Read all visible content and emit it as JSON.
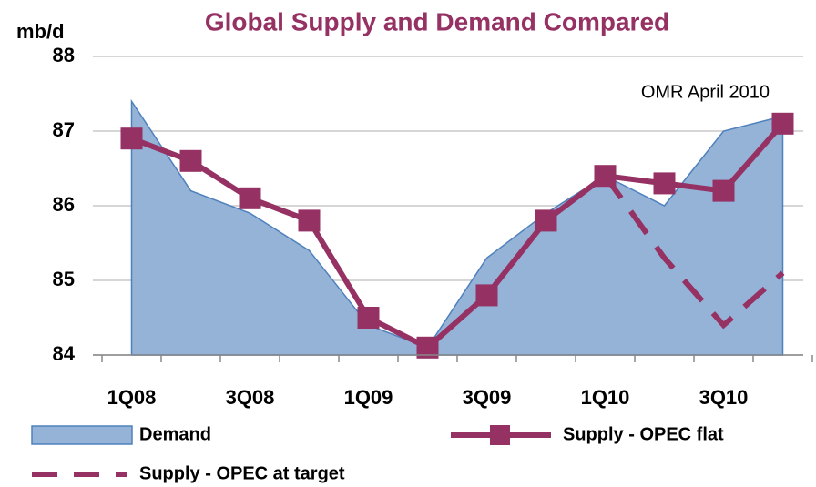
{
  "chart_data": {
    "type": "line",
    "title": "Global Supply and Demand Compared",
    "y_label": "mb/d",
    "annotation": "OMR April 2010",
    "categories": [
      "1Q08",
      null,
      "3Q08",
      null,
      "1Q09",
      null,
      "3Q09",
      null,
      "1Q10",
      null,
      "3Q10",
      null
    ],
    "series": [
      {
        "name": "Demand",
        "type": "area",
        "color": "#95b3d7",
        "values": [
          87.4,
          86.2,
          85.9,
          85.4,
          84.4,
          84.1,
          85.3,
          85.9,
          86.4,
          86.0,
          87.0,
          87.2
        ]
      },
      {
        "name": "Supply - OPEC flat",
        "type": "line-marker",
        "color": "#953163",
        "values": [
          86.9,
          86.6,
          86.1,
          85.8,
          84.5,
          84.1,
          84.8,
          85.8,
          86.4,
          86.3,
          86.2,
          87.1
        ]
      },
      {
        "name": "Supply - OPEC at target",
        "type": "dashed",
        "color": "#953163",
        "values": [
          null,
          null,
          null,
          null,
          null,
          null,
          null,
          null,
          86.4,
          85.3,
          84.4,
          85.1
        ]
      }
    ],
    "ylim": [
      84,
      88
    ],
    "yticks": [
      84,
      85,
      86,
      87,
      88
    ],
    "grid": true
  }
}
